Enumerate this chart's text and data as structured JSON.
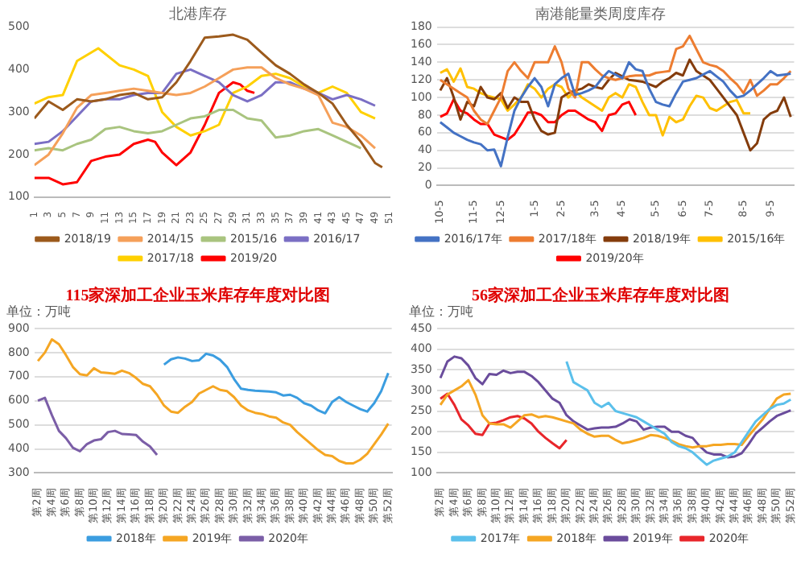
{
  "chart_data": [
    {
      "type": "line",
      "title": "北港库存",
      "xlim": [
        1,
        51
      ],
      "xticks": [
        1,
        3,
        5,
        7,
        9,
        11,
        13,
        15,
        17,
        19,
        21,
        23,
        25,
        27,
        29,
        31,
        33,
        35,
        37,
        39,
        41,
        43,
        45,
        47,
        49,
        51
      ],
      "ylim": [
        100,
        500
      ],
      "yticks": [
        100,
        200,
        300,
        400,
        500
      ],
      "legend": "bottom",
      "marker": "none",
      "line_style": "solid",
      "series": [
        {
          "name": "2018/19",
          "color": "#9c5a1c",
          "x": [
            1,
            3,
            5,
            7,
            9,
            11,
            13,
            15,
            17,
            19,
            21,
            23,
            25,
            27,
            29,
            31,
            33,
            35,
            37,
            39,
            41,
            43,
            45,
            47,
            49,
            50
          ],
          "values": [
            285,
            325,
            305,
            330,
            325,
            330,
            340,
            345,
            330,
            335,
            370,
            420,
            475,
            478,
            482,
            470,
            440,
            410,
            390,
            365,
            345,
            320,
            270,
            230,
            180,
            170
          ]
        },
        {
          "name": "2014/15",
          "color": "#f5a05a",
          "x": [
            1,
            3,
            5,
            7,
            9,
            11,
            13,
            15,
            17,
            19,
            21,
            23,
            25,
            27,
            29,
            31,
            33,
            35,
            37,
            39,
            41,
            43,
            45,
            47,
            49
          ],
          "values": [
            175,
            200,
            250,
            310,
            340,
            345,
            350,
            355,
            350,
            345,
            340,
            345,
            360,
            380,
            400,
            405,
            405,
            380,
            365,
            355,
            340,
            275,
            265,
            245,
            215
          ]
        },
        {
          "name": "2015/16",
          "color": "#a9c47f",
          "x": [
            1,
            3,
            5,
            7,
            9,
            11,
            13,
            15,
            17,
            19,
            21,
            23,
            25,
            27,
            29,
            31,
            33,
            35,
            37,
            39,
            41,
            43,
            45,
            47
          ],
          "values": [
            210,
            215,
            210,
            225,
            235,
            260,
            265,
            255,
            250,
            255,
            270,
            285,
            290,
            305,
            305,
            285,
            280,
            240,
            245,
            255,
            260,
            245,
            230,
            215
          ]
        },
        {
          "name": "2016/17",
          "color": "#7b6fc4",
          "x": [
            1,
            3,
            5,
            7,
            9,
            11,
            13,
            15,
            17,
            19,
            21,
            23,
            25,
            27,
            29,
            31,
            33,
            35,
            37,
            39,
            41,
            43,
            45,
            47,
            49
          ],
          "values": [
            225,
            230,
            255,
            290,
            325,
            330,
            330,
            340,
            345,
            345,
            390,
            400,
            385,
            370,
            340,
            325,
            340,
            370,
            370,
            355,
            345,
            330,
            340,
            330,
            315
          ]
        },
        {
          "name": "2017/18",
          "color": "#ffd000",
          "x": [
            1,
            3,
            5,
            7,
            9,
            10,
            13,
            15,
            17,
            19,
            21,
            23,
            25,
            27,
            29,
            31,
            33,
            35,
            37,
            39,
            41,
            43,
            45,
            47,
            49
          ],
          "values": [
            320,
            335,
            340,
            420,
            440,
            450,
            410,
            400,
            385,
            300,
            265,
            245,
            255,
            270,
            345,
            360,
            385,
            390,
            380,
            360,
            345,
            360,
            345,
            300,
            285
          ]
        },
        {
          "name": "2019/20",
          "color": "#ff0000",
          "x": [
            1,
            3,
            5,
            7,
            9,
            11,
            13,
            15,
            17,
            18,
            19,
            21,
            23,
            25,
            27,
            29,
            30,
            31,
            32
          ],
          "values": [
            145,
            145,
            130,
            135,
            185,
            195,
            200,
            225,
            235,
            230,
            205,
            175,
            205,
            270,
            345,
            370,
            365,
            350,
            345
          ]
        }
      ]
    },
    {
      "type": "line",
      "title": "南港能量类周度库存",
      "categories": [
        "10-5",
        null,
        null,
        null,
        null,
        "11-5",
        null,
        null,
        null,
        "12-5",
        null,
        null,
        null,
        null,
        "1-5",
        null,
        null,
        null,
        "2-5",
        null,
        null,
        null,
        null,
        "3-5",
        null,
        null,
        null,
        "4-5",
        null,
        null,
        null,
        null,
        "5-5",
        null,
        null,
        null,
        "6-5",
        null,
        null,
        null,
        "7-5",
        null,
        null,
        null,
        null,
        "8-5",
        null,
        null,
        null,
        "9-5",
        null,
        null,
        null
      ],
      "ylim": [
        0,
        180
      ],
      "yticks": [
        0,
        20,
        40,
        60,
        80,
        100,
        120,
        140,
        160,
        180
      ],
      "grid": "y",
      "legend": "bottom",
      "marker": "none",
      "line_style": "solid",
      "series": [
        {
          "name": "2016/17年",
          "color": "#4472c4",
          "values": [
            72,
            66,
            60,
            56,
            52,
            49,
            47,
            40,
            41,
            22,
            55,
            85,
            100,
            112,
            122,
            112,
            90,
            115,
            122,
            127,
            103,
            105,
            108,
            112,
            122,
            130,
            126,
            122,
            140,
            132,
            130,
            110,
            95,
            92,
            90,
            105,
            118,
            120,
            122,
            126,
            130,
            124,
            118,
            108,
            100,
            102,
            108,
            115,
            122,
            130,
            125,
            126,
            127
          ]
        },
        {
          "name": "2017/18年",
          "color": "#ed7d31",
          "values": [
            120,
            115,
            110,
            105,
            100,
            85,
            75,
            70,
            85,
            100,
            130,
            140,
            130,
            122,
            140,
            140,
            140,
            158,
            140,
            110,
            100,
            140,
            140,
            132,
            125,
            122,
            120,
            122,
            124,
            125,
            125,
            125,
            128,
            129,
            130,
            155,
            158,
            170,
            155,
            140,
            137,
            135,
            130,
            122,
            115,
            105,
            120,
            102,
            108,
            115,
            115,
            122,
            130
          ]
        },
        {
          "name": "2018/19年",
          "color": "#843c0c",
          "values": [
            108,
            122,
            100,
            75,
            95,
            90,
            112,
            100,
            98,
            105,
            88,
            100,
            95,
            95,
            75,
            62,
            58,
            60,
            100,
            105,
            108,
            110,
            115,
            112,
            110,
            120,
            128,
            124,
            120,
            119,
            118,
            115,
            112,
            118,
            122,
            128,
            125,
            143,
            130,
            125,
            120,
            110,
            100,
            90,
            80,
            60,
            40,
            48,
            75,
            82,
            85,
            100,
            78
          ]
        },
        {
          "name": "2015/16年",
          "color": "#ffc000",
          "values": [
            128,
            132,
            118,
            133,
            112,
            110,
            105,
            102,
            100,
            98,
            85,
            92,
            100,
            115,
            110,
            100,
            110,
            115,
            112,
            100,
            108,
            100,
            95,
            90,
            85,
            100,
            105,
            100,
            115,
            112,
            95,
            80,
            80,
            57,
            78,
            72,
            75,
            90,
            102,
            100,
            88,
            85,
            90,
            95,
            97,
            82,
            82,
            null,
            null,
            null,
            null,
            null,
            null
          ]
        },
        {
          "name": "2019/20年",
          "color": "#ff0000",
          "values": [
            78,
            82,
            98,
            85,
            82,
            75,
            70,
            70,
            58,
            55,
            52,
            58,
            70,
            83,
            83,
            80,
            72,
            72,
            80,
            85,
            85,
            80,
            75,
            72,
            62,
            80,
            82,
            92,
            95,
            80,
            null,
            null,
            null,
            null,
            null,
            null,
            null,
            null,
            null,
            null,
            null,
            null,
            null,
            null,
            null,
            null,
            null,
            null,
            null,
            null,
            null,
            null,
            null
          ]
        }
      ]
    },
    {
      "type": "line",
      "title": "115家深加工企业玉米库存年度对比图",
      "annotations": [
        "单位：万吨"
      ],
      "categories": [
        "第2周",
        null,
        "第4周",
        null,
        "第6周",
        null,
        "第8周",
        null,
        "第10周",
        null,
        "第12周",
        null,
        "第14周",
        null,
        "第16周",
        null,
        "第18周",
        null,
        "第20周",
        null,
        "第22周",
        null,
        "第24周",
        null,
        "第26周",
        null,
        "第28周",
        null,
        "第30周",
        null,
        "第32周",
        null,
        "第34周",
        null,
        "第36周",
        null,
        "第38周",
        null,
        "第40周",
        null,
        "第42周",
        null,
        "第44周",
        null,
        "第46周",
        null,
        "第48周",
        null,
        "第50周",
        null,
        "第52周"
      ],
      "ylim": [
        300,
        900
      ],
      "yticks": [
        300,
        400,
        500,
        600,
        700,
        800,
        900
      ],
      "grid": "y",
      "legend": "bottom",
      "marker": "none",
      "line_style": "solid",
      "series": [
        {
          "name": "2018年",
          "color": "#3b9de0",
          "values": [
            null,
            null,
            null,
            null,
            null,
            null,
            null,
            null,
            null,
            null,
            null,
            null,
            null,
            null,
            null,
            null,
            null,
            null,
            750,
            772,
            780,
            775,
            765,
            768,
            795,
            788,
            770,
            740,
            690,
            650,
            645,
            642,
            640,
            638,
            635,
            622,
            625,
            612,
            590,
            580,
            560,
            548,
            595,
            615,
            595,
            580,
            565,
            555,
            590,
            640,
            715
          ]
        },
        {
          "name": "2019年",
          "color": "#f5a623",
          "values": [
            765,
            800,
            855,
            835,
            790,
            740,
            710,
            705,
            735,
            718,
            715,
            712,
            725,
            715,
            695,
            670,
            660,
            625,
            580,
            555,
            550,
            575,
            595,
            630,
            645,
            660,
            645,
            640,
            615,
            580,
            560,
            550,
            545,
            535,
            530,
            510,
            500,
            470,
            445,
            420,
            395,
            375,
            370,
            350,
            340,
            340,
            355,
            380,
            420,
            460,
            505
          ]
        },
        {
          "name": "2020年",
          "color": "#7b5ea7",
          "values": [
            600,
            612,
            540,
            475,
            445,
            405,
            390,
            420,
            435,
            440,
            470,
            475,
            462,
            460,
            458,
            430,
            410,
            375,
            null,
            null,
            null,
            null,
            null,
            null,
            null,
            null,
            null,
            null,
            null,
            null,
            null,
            null,
            null,
            null,
            null,
            null,
            null,
            null,
            null,
            null,
            null,
            null,
            null,
            null,
            null,
            null,
            null,
            null,
            null,
            null,
            null
          ]
        }
      ]
    },
    {
      "type": "line",
      "title": "56家深加工企业玉米库存年度对比图",
      "annotations": [
        "单位：万吨"
      ],
      "categories": [
        "第2周",
        null,
        "第4周",
        null,
        "第6周",
        null,
        "第8周",
        null,
        "第10周",
        null,
        "第12周",
        null,
        "第14周",
        null,
        "第16周",
        null,
        "第18周",
        null,
        "第20周",
        null,
        "第22周",
        null,
        "第24周",
        null,
        "第26周",
        null,
        "第28周",
        null,
        "第30周",
        null,
        "第32周",
        null,
        "第34周",
        null,
        "第36周",
        null,
        "第38周",
        null,
        "第40周",
        null,
        "第42周",
        null,
        "第44周",
        null,
        "第46周",
        null,
        "第48周",
        null,
        "第50周",
        null,
        "第52周"
      ],
      "ylim": [
        100,
        450
      ],
      "yticks": [
        100,
        150,
        200,
        250,
        300,
        350,
        400,
        450
      ],
      "grid": "y",
      "legend": "bottom",
      "marker": "none",
      "line_style": "solid",
      "series": [
        {
          "name": "2017年",
          "color": "#5bc0eb",
          "values": [
            null,
            null,
            null,
            null,
            null,
            null,
            null,
            null,
            null,
            null,
            null,
            null,
            null,
            null,
            null,
            null,
            null,
            null,
            370,
            320,
            310,
            300,
            270,
            260,
            270,
            250,
            245,
            240,
            235,
            225,
            215,
            205,
            195,
            175,
            165,
            160,
            150,
            135,
            120,
            130,
            135,
            140,
            150,
            175,
            200,
            225,
            240,
            255,
            265,
            268,
            278
          ]
        },
        {
          "name": "2018年",
          "color": "#f5a623",
          "values": [
            265,
            290,
            300,
            310,
            325,
            290,
            240,
            220,
            218,
            218,
            210,
            225,
            240,
            242,
            235,
            238,
            235,
            230,
            225,
            220,
            205,
            195,
            188,
            190,
            190,
            180,
            172,
            175,
            180,
            185,
            192,
            190,
            185,
            178,
            170,
            165,
            162,
            165,
            165,
            168,
            168,
            170,
            170,
            168,
            190,
            210,
            230,
            255,
            280,
            290,
            292
          ]
        },
        {
          "name": "2019年",
          "color": "#6a4c9c",
          "values": [
            330,
            370,
            382,
            378,
            360,
            330,
            315,
            340,
            338,
            348,
            342,
            345,
            345,
            335,
            320,
            300,
            280,
            270,
            240,
            225,
            215,
            205,
            208,
            210,
            210,
            212,
            220,
            230,
            225,
            205,
            210,
            212,
            212,
            200,
            200,
            190,
            185,
            165,
            150,
            145,
            145,
            138,
            140,
            148,
            170,
            195,
            210,
            225,
            238,
            245,
            252
          ]
        },
        {
          "name": "2020年",
          "color": "#e8262b",
          "values": [
            280,
            292,
            265,
            230,
            215,
            195,
            192,
            220,
            222,
            228,
            235,
            238,
            232,
            220,
            200,
            185,
            172,
            160,
            180,
            null,
            null,
            null,
            null,
            null,
            null,
            null,
            null,
            null,
            null,
            null,
            null,
            null,
            null,
            null,
            null,
            null,
            null,
            null,
            null,
            null,
            null,
            null,
            null,
            null,
            null,
            null,
            null,
            null,
            null,
            null,
            null
          ]
        }
      ]
    }
  ]
}
